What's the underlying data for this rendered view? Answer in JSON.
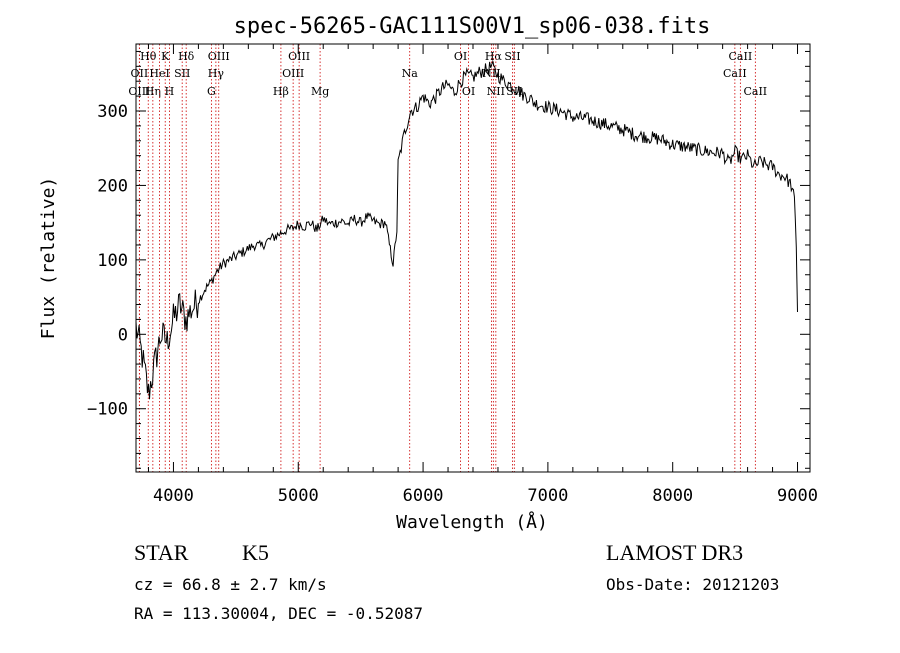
{
  "chart_data": {
    "type": "line",
    "title": "spec-56265-GAC111S00V1_sp06-038.fits",
    "xlabel": "Wavelength (Å)",
    "ylabel": "Flux (relative)",
    "xlim": [
      3700,
      9100
    ],
    "ylim": [
      -185,
      390
    ],
    "xticks": [
      4000,
      5000,
      6000,
      7000,
      8000,
      9000
    ],
    "yticks": [
      -100,
      0,
      100,
      200,
      300
    ],
    "grid": false,
    "series": [
      {
        "name": "spectrum",
        "x": [
          3700,
          3750,
          3800,
          3850,
          3900,
          3950,
          4000,
          4050,
          4100,
          4150,
          4200,
          4250,
          4300,
          4350,
          4400,
          4450,
          4500,
          4550,
          4600,
          4650,
          4700,
          4750,
          4800,
          4850,
          4900,
          4950,
          5000,
          5050,
          5100,
          5150,
          5200,
          5250,
          5300,
          5350,
          5400,
          5450,
          5500,
          5550,
          5600,
          5650,
          5700,
          5730,
          5760,
          5790,
          5800,
          5850,
          5900,
          5950,
          6000,
          6050,
          6100,
          6150,
          6200,
          6250,
          6300,
          6350,
          6400,
          6450,
          6500,
          6550,
          6600,
          6650,
          6700,
          6750,
          6800,
          6850,
          6900,
          6950,
          7000,
          7100,
          7200,
          7300,
          7400,
          7500,
          7600,
          7700,
          7800,
          7900,
          8000,
          8100,
          8200,
          8300,
          8400,
          8450,
          8500,
          8550,
          8600,
          8650,
          8700,
          8750,
          8800,
          8850,
          8900,
          8950,
          8975,
          8990,
          9000
        ],
        "values": [
          10,
          -30,
          -80,
          -40,
          0,
          -10,
          20,
          40,
          20,
          35,
          45,
          60,
          70,
          85,
          95,
          100,
          105,
          110,
          115,
          120,
          118,
          125,
          130,
          135,
          140,
          142,
          148,
          145,
          150,
          140,
          155,
          148,
          150,
          152,
          148,
          155,
          150,
          158,
          152,
          148,
          150,
          120,
          95,
          140,
          230,
          270,
          300,
          305,
          320,
          310,
          318,
          330,
          335,
          325,
          340,
          348,
          345,
          352,
          355,
          360,
          348,
          340,
          335,
          330,
          322,
          318,
          310,
          308,
          305,
          300,
          292,
          290,
          285,
          280,
          275,
          268,
          265,
          262,
          255,
          252,
          248,
          245,
          243,
          230,
          245,
          235,
          240,
          225,
          232,
          228,
          225,
          215,
          212,
          200,
          180,
          120,
          30
        ]
      }
    ],
    "spectral_lines": [
      {
        "label": "Hθ",
        "wavelength": 3798,
        "row": 0
      },
      {
        "label": "OII",
        "wavelength": 3727,
        "row": 1
      },
      {
        "label": "OIII",
        "wavelength": 3727,
        "row": 2
      },
      {
        "label": "Hη",
        "wavelength": 3835,
        "row": 2
      },
      {
        "label": "HeI",
        "wavelength": 3889,
        "row": 1
      },
      {
        "label": "K",
        "wavelength": 3934,
        "row": 0
      },
      {
        "label": "H",
        "wavelength": 3968,
        "row": 2
      },
      {
        "label": "SII",
        "wavelength": 4070,
        "row": 1
      },
      {
        "label": "Hδ",
        "wavelength": 4102,
        "row": 0
      },
      {
        "label": "OIII",
        "wavelength": 4363,
        "row": 0
      },
      {
        "label": "Hγ",
        "wavelength": 4340,
        "row": 1
      },
      {
        "label": "G",
        "wavelength": 4304,
        "row": 2
      },
      {
        "label": "Hβ",
        "wavelength": 4861,
        "row": 2
      },
      {
        "label": "OIII",
        "wavelength": 5007,
        "row": 0
      },
      {
        "label": "OIII",
        "wavelength": 4959,
        "row": 1
      },
      {
        "label": "Mg",
        "wavelength": 5175,
        "row": 2
      },
      {
        "label": "Na",
        "wavelength": 5893,
        "row": 1
      },
      {
        "label": "OI",
        "wavelength": 6300,
        "row": 0
      },
      {
        "label": "OI",
        "wavelength": 6364,
        "row": 2
      },
      {
        "label": "NII",
        "wavelength": 6548,
        "row": 1
      },
      {
        "label": "Hα",
        "wavelength": 6563,
        "row": 0
      },
      {
        "label": "NII",
        "wavelength": 6583,
        "row": 2
      },
      {
        "label": "SII",
        "wavelength": 6716,
        "row": 0
      },
      {
        "label": "SII",
        "wavelength": 6731,
        "row": 2
      },
      {
        "label": "CaII",
        "wavelength": 8498,
        "row": 1
      },
      {
        "label": "CaII",
        "wavelength": 8542,
        "row": 0
      },
      {
        "label": "CaII",
        "wavelength": 8662,
        "row": 2
      }
    ]
  },
  "info": {
    "object_class": "STAR",
    "subclass": "K5",
    "survey": "LAMOST DR3",
    "redshift_line": "cz = 66.8 ± 2.7 km/s",
    "obs_date": "Obs-Date: 20121203",
    "coords": "RA = 113.30004, DEC =  -0.52087"
  },
  "colors": {
    "line_marker": "#cc0000",
    "spectrum": "#000000",
    "axes": "#000000"
  }
}
